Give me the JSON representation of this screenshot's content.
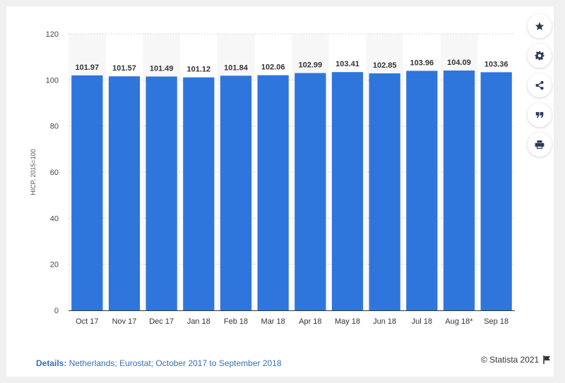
{
  "chart_data": {
    "type": "bar",
    "categories": [
      "Oct 17",
      "Nov 17",
      "Dec 17",
      "Jan 18",
      "Feb 18",
      "Mar 18",
      "Apr 18",
      "May 18",
      "Jun 18",
      "Jul 18",
      "Aug 18*",
      "Sep 18"
    ],
    "values": [
      101.97,
      101.57,
      101.49,
      101.12,
      101.84,
      102.06,
      102.99,
      103.41,
      102.85,
      103.96,
      104.09,
      103.36
    ],
    "value_labels": [
      "101.97",
      "101.57",
      "101.49",
      "101.12",
      "101.84",
      "102.06",
      "102.99",
      "103.41",
      "102.85",
      "103.96",
      "104.09",
      "103.36"
    ],
    "ylabel": "HICP, 2015=100",
    "ylim": [
      0,
      120
    ],
    "yticks": [
      "0",
      "20",
      "40",
      "60",
      "80",
      "100",
      "120"
    ],
    "grid": true,
    "colors": {
      "bar": "#2f76dc",
      "grid": "#cccccc"
    }
  },
  "footer": {
    "details_label": "Details:",
    "details_text": "Netherlands; Eurostat; October 2017 to September 2018",
    "credit": "© Statista 2021"
  },
  "toolbar": {
    "icons": [
      "star-icon",
      "gear-icon",
      "share-icon",
      "quote-icon",
      "print-icon"
    ]
  }
}
